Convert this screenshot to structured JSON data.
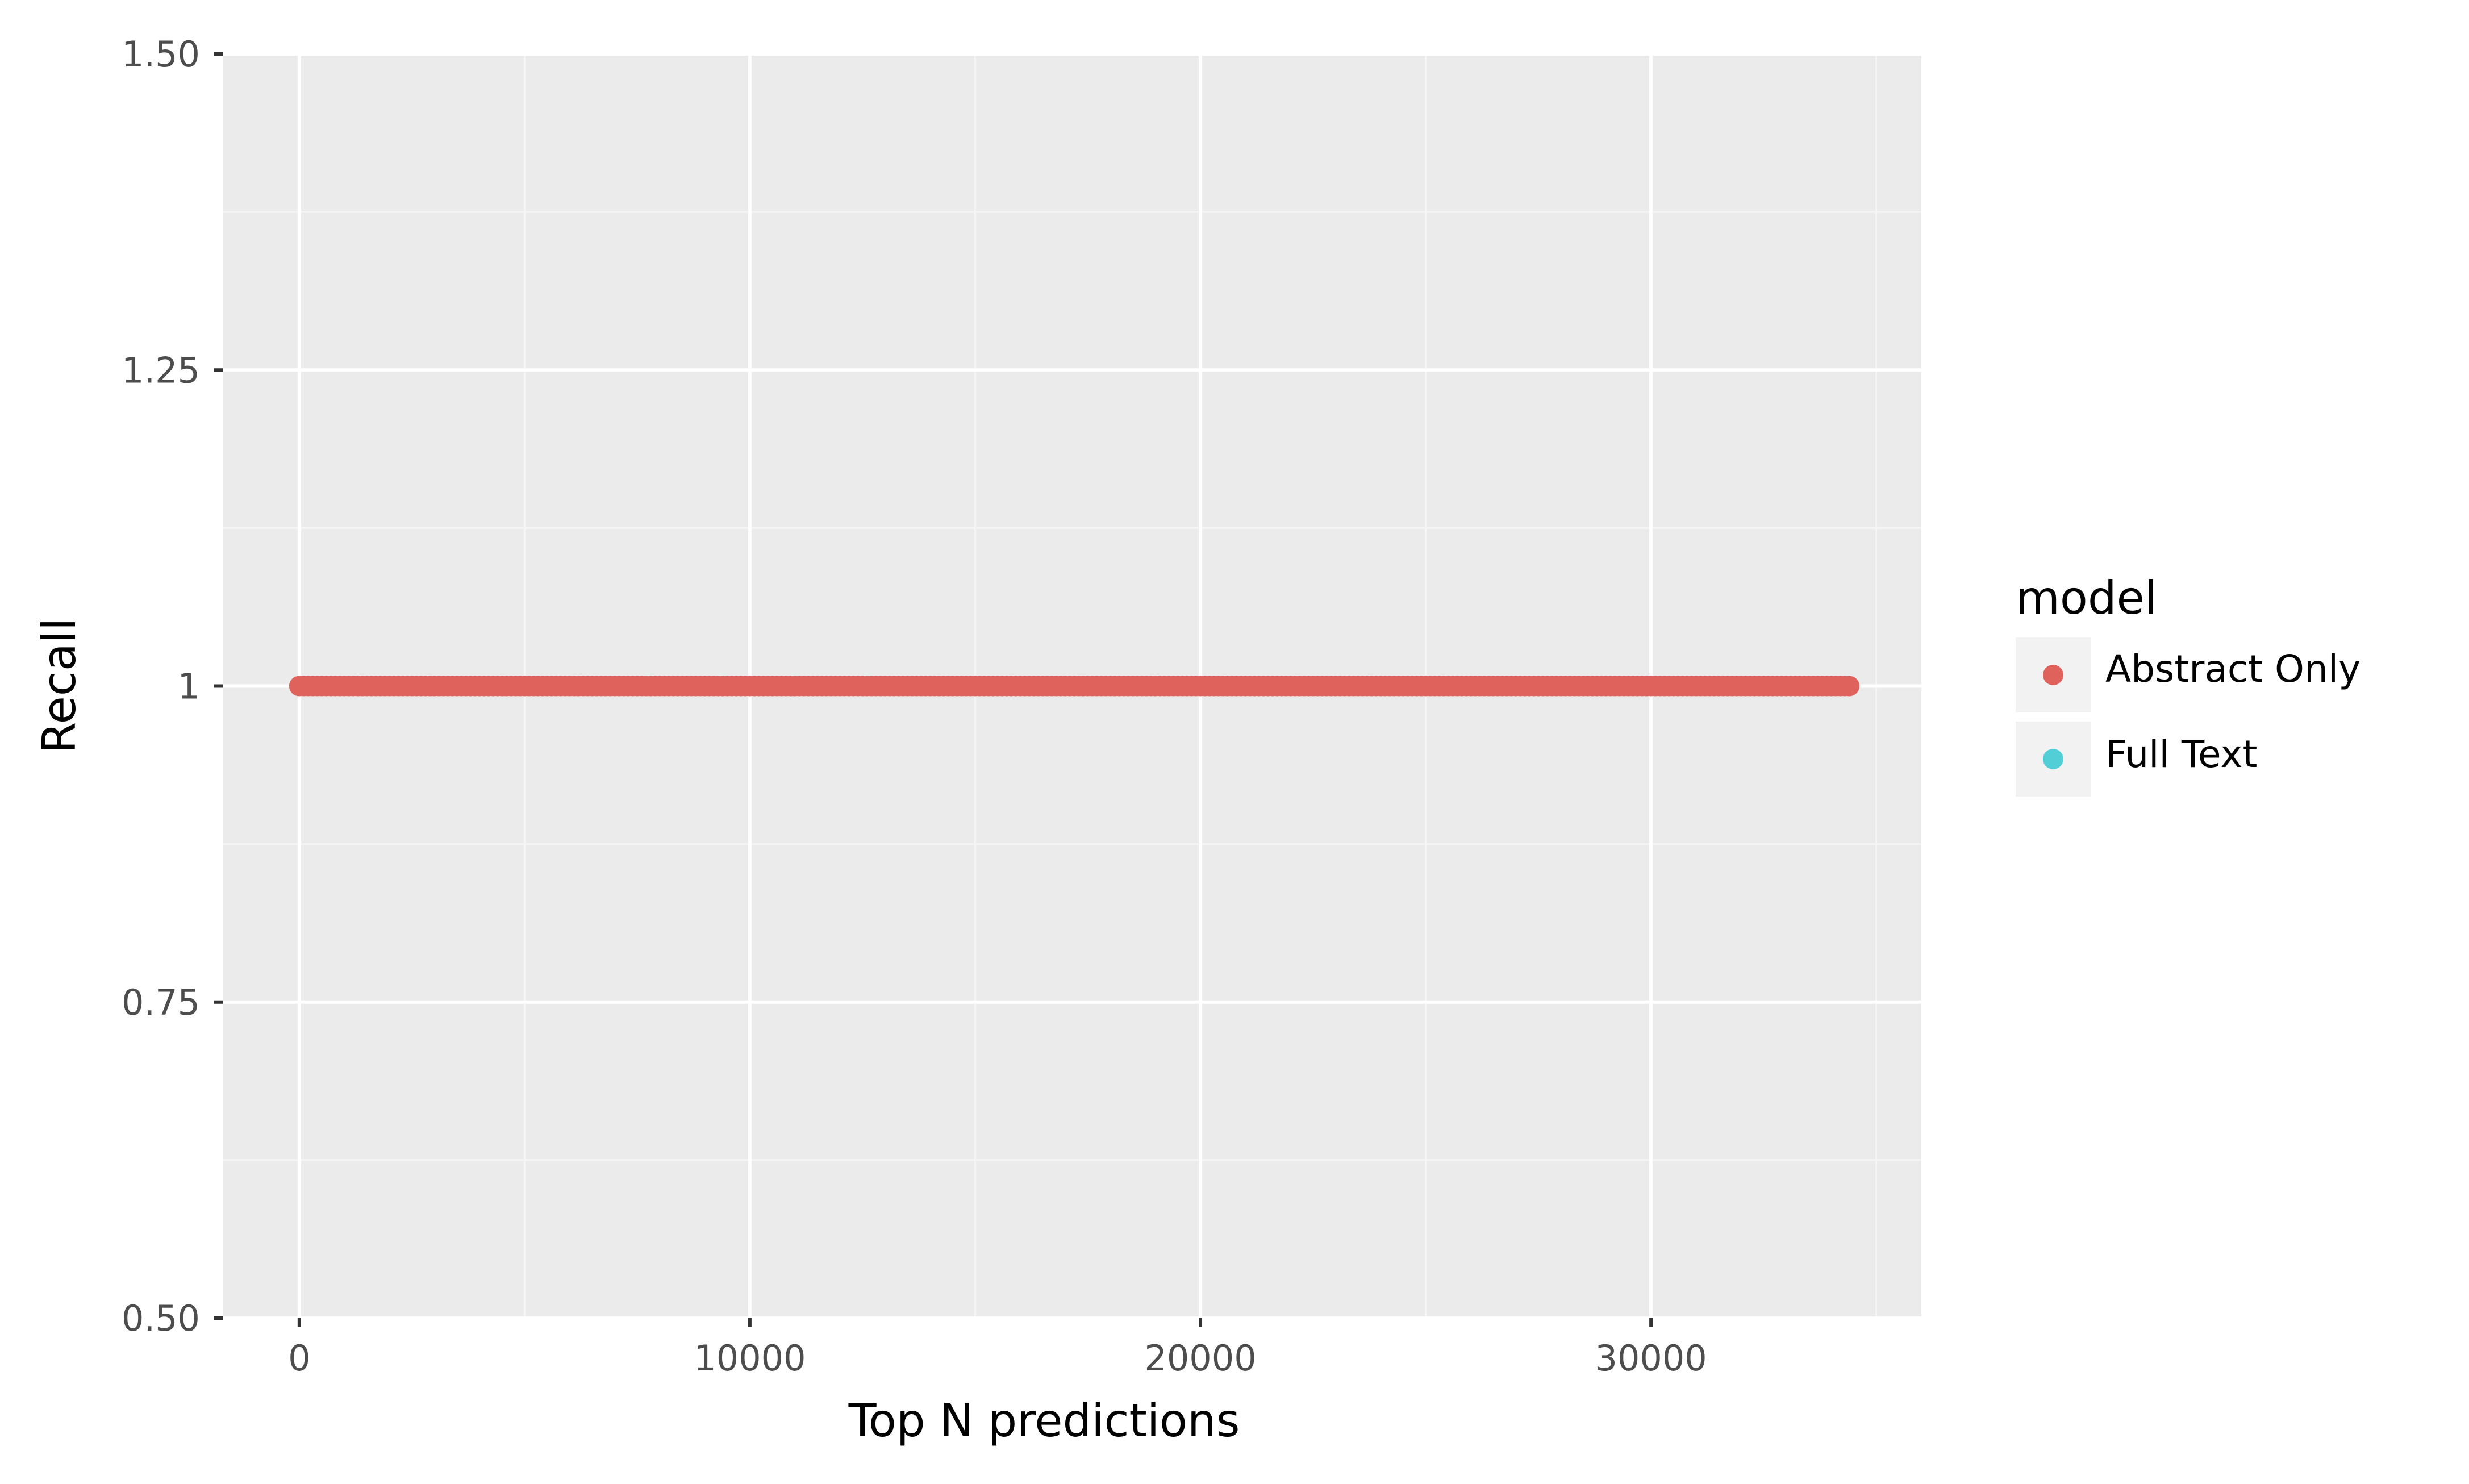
{
  "chart_data": {
    "type": "scatter",
    "title": "",
    "xlabel": "Top N predictions",
    "ylabel": "Recall",
    "xlim": [
      -1700,
      36000
    ],
    "ylim": [
      0.5,
      1.5
    ],
    "x_ticks": [
      0,
      10000,
      20000,
      30000
    ],
    "x_tick_labels": [
      "0",
      "10000",
      "20000",
      "30000"
    ],
    "y_ticks": [
      0.5,
      0.75,
      1.0,
      1.25,
      1.5
    ],
    "y_tick_labels": [
      "0.50",
      "0.75",
      "1",
      "1.25",
      "1.50"
    ],
    "grid": true,
    "legend": {
      "title": "model",
      "position": "right",
      "entries": [
        {
          "name": "Abstract Only",
          "color": "#e0625c"
        },
        {
          "name": "Full Text",
          "color": "#52cfd6"
        }
      ]
    },
    "series": [
      {
        "name": "Abstract Only",
        "color": "#e0625c",
        "x_start": 0,
        "x_end": 34400,
        "x_step": 100,
        "y": 1.0
      }
    ]
  },
  "colors": {
    "panel_bg": "#ebebeb",
    "grid_major": "#ffffff",
    "grid_minor": "#f5f5f5",
    "tick_color": "#333333"
  }
}
